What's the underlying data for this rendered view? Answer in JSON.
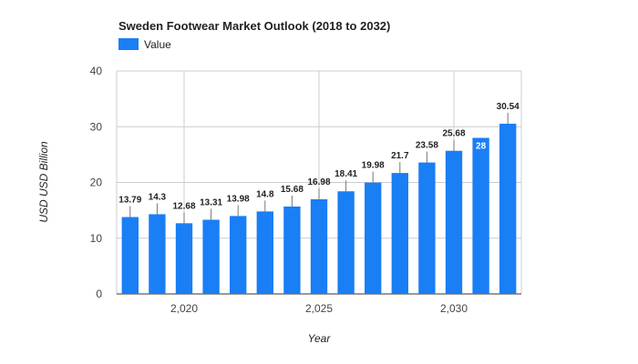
{
  "chart_data": {
    "type": "bar",
    "title": "Sweden Footwear Market Outlook (2018 to 2032)",
    "xlabel": "Year",
    "ylabel": "USD USD Billion",
    "ylim": [
      0,
      40
    ],
    "yticks": [
      0,
      10,
      20,
      30,
      40
    ],
    "xlim": [
      2017.5,
      2032.5
    ],
    "xticks": [
      2020,
      2025,
      2030
    ],
    "xtick_labels": [
      "2,020",
      "2,025",
      "2,030"
    ],
    "grid": true,
    "legend_position": "top-left",
    "series": [
      {
        "name": "Value",
        "color": "#1a7ef5",
        "x": [
          2018,
          2019,
          2020,
          2021,
          2022,
          2023,
          2024,
          2025,
          2026,
          2027,
          2028,
          2029,
          2030,
          2031,
          2032
        ],
        "values": [
          13.79,
          14.3,
          12.68,
          13.31,
          13.98,
          14.8,
          15.68,
          16.98,
          18.41,
          19.98,
          21.7,
          23.58,
          25.68,
          28,
          30.54
        ],
        "labels": [
          "13.79",
          "14.3",
          "12.68",
          "13.31",
          "13.98",
          "14.8",
          "15.68",
          "16.98",
          "18.41",
          "19.98",
          "21.7",
          "23.58",
          "25.68",
          "28",
          "30.54"
        ]
      }
    ],
    "inside_label_index": 13
  }
}
